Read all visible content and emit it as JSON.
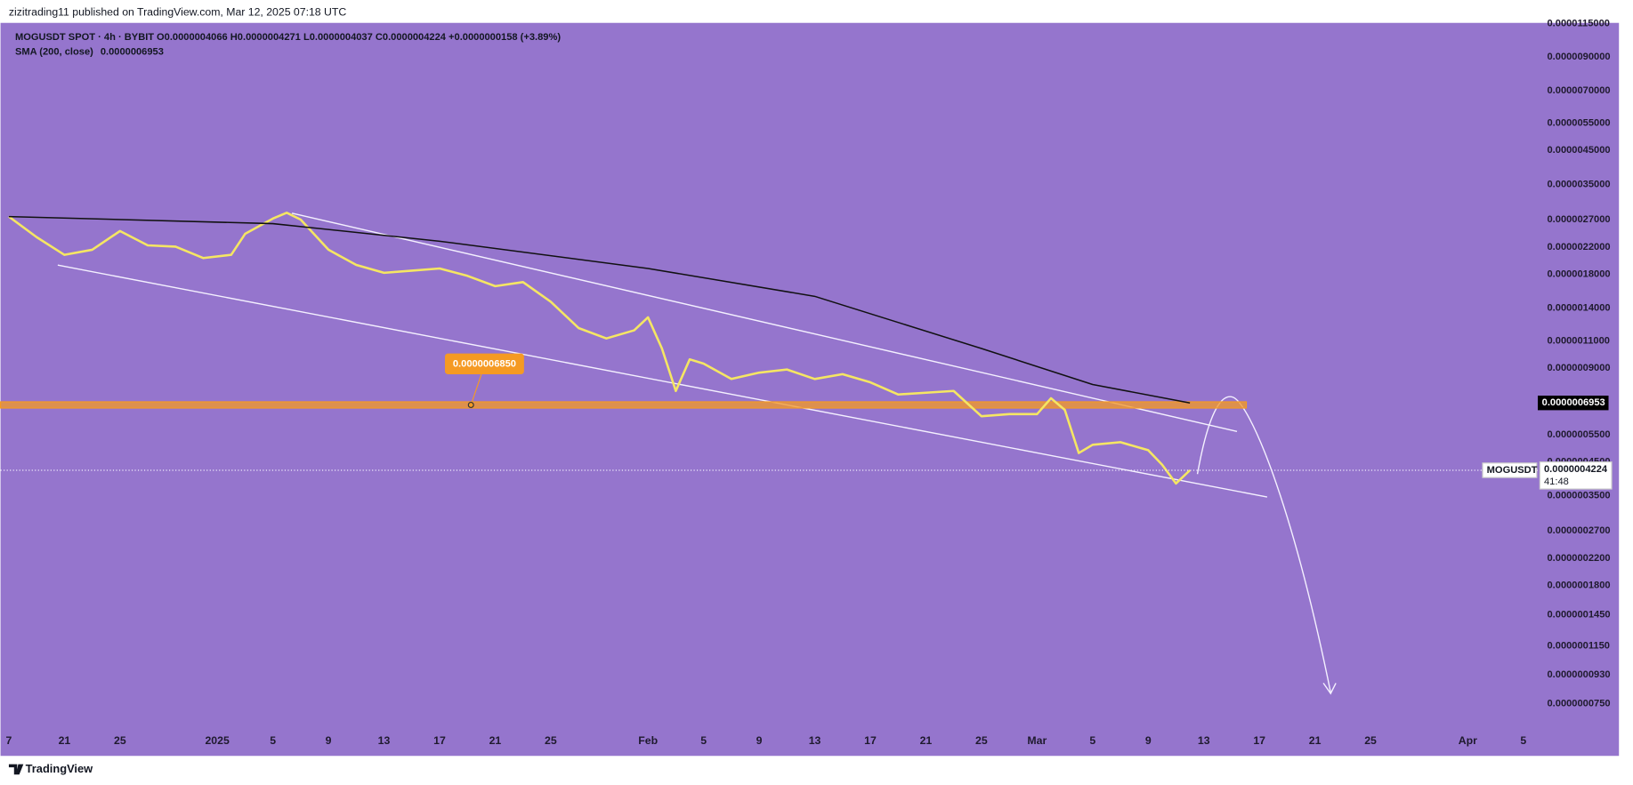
{
  "header": {
    "publisher": "zizitrading11 published on TradingView.com, Mar 12, 2025 07:18 UTC"
  },
  "legend": {
    "symbol": "MOGUSDT SPOT · 4h · BYBIT",
    "ohlc": "O0.0000004066 H0.0000004271 L0.0000004037 C0.0000004224 +0.0000000158 (+3.89%)"
  },
  "footer": {
    "brand": "TradingView"
  },
  "chart_data": {
    "type": "line",
    "log_scale": true,
    "xlim": [
      "2024-12-16T09:36",
      "2025-04-06T06:15"
    ],
    "xticks": [
      {
        "value": "2024-12-17",
        "label": "7"
      },
      {
        "value": "2024-12-21",
        "label": "21"
      },
      {
        "value": "2024-12-25",
        "label": "25"
      },
      {
        "value": "2025-01-01",
        "label": "2025"
      },
      {
        "value": "2025-01-05",
        "label": "5"
      },
      {
        "value": "2025-01-09",
        "label": "9"
      },
      {
        "value": "2025-01-13",
        "label": "13"
      },
      {
        "value": "2025-01-17",
        "label": "17"
      },
      {
        "value": "2025-01-21",
        "label": "21"
      },
      {
        "value": "2025-01-25",
        "label": "25"
      },
      {
        "value": "2025-02-01",
        "label": "Feb"
      },
      {
        "value": "2025-02-05",
        "label": "5"
      },
      {
        "value": "2025-02-09",
        "label": "9"
      },
      {
        "value": "2025-02-13",
        "label": "13"
      },
      {
        "value": "2025-02-17",
        "label": "17"
      },
      {
        "value": "2025-02-21",
        "label": "21"
      },
      {
        "value": "2025-02-25",
        "label": "25"
      },
      {
        "value": "2025-03-01",
        "label": "Mar"
      },
      {
        "value": "2025-03-05",
        "label": "5"
      },
      {
        "value": "2025-03-09",
        "label": "9"
      },
      {
        "value": "2025-03-13",
        "label": "13"
      },
      {
        "value": "2025-03-17",
        "label": "17"
      },
      {
        "value": "2025-03-21",
        "label": "21"
      },
      {
        "value": "2025-03-25",
        "label": "25"
      },
      {
        "value": "2025-04-01",
        "label": "Apr"
      },
      {
        "value": "2025-04-05",
        "label": "5"
      }
    ],
    "ylim": [
      6.43e-08,
      1.157e-05
    ],
    "yticks": [
      {
        "value": 1.15e-05,
        "label": "0.0000115000"
      },
      {
        "value": 9e-06,
        "label": "0.0000090000"
      },
      {
        "value": 7e-06,
        "label": "0.0000070000"
      },
      {
        "value": 5.5e-06,
        "label": "0.0000055000"
      },
      {
        "value": 4.5e-06,
        "label": "0.0000045000"
      },
      {
        "value": 3.5e-06,
        "label": "0.0000035000"
      },
      {
        "value": 2.7e-06,
        "label": "0.0000027000"
      },
      {
        "value": 2.2e-06,
        "label": "0.0000022000"
      },
      {
        "value": 1.8e-06,
        "label": "0.0000018000"
      },
      {
        "value": 1.4e-06,
        "label": "0.0000014000"
      },
      {
        "value": 1.1e-06,
        "label": "0.0000011000"
      },
      {
        "value": 9e-07,
        "label": "0.0000009000"
      },
      {
        "value": 5.5e-07,
        "label": "0.0000005500"
      },
      {
        "value": 4.5e-07,
        "label": "0.0000004500"
      },
      {
        "value": 3.5e-07,
        "label": "0.0000003500"
      },
      {
        "value": 2.7e-07,
        "label": "0.0000002700"
      },
      {
        "value": 2.2e-07,
        "label": "0.0000002200"
      },
      {
        "value": 1.8e-07,
        "label": "0.0000001800"
      },
      {
        "value": 1.45e-07,
        "label": "0.0000001450"
      },
      {
        "value": 1.15e-07,
        "label": "0.0000001150"
      },
      {
        "value": 9.3e-08,
        "label": "0.0000000930"
      },
      {
        "value": 7.5e-08,
        "label": "0.0000000750"
      }
    ],
    "series": [
      {
        "name": "MOGUSDT",
        "color": "#f5e663",
        "x": [
          "2024-12-17",
          "2024-12-19",
          "2024-12-21",
          "2024-12-23",
          "2024-12-25",
          "2024-12-27",
          "2024-12-29",
          "2024-12-31",
          "2025-01-02",
          "2025-01-03",
          "2025-01-05",
          "2025-01-06",
          "2025-01-07",
          "2025-01-09",
          "2025-01-11",
          "2025-01-13",
          "2025-01-15",
          "2025-01-17",
          "2025-01-19",
          "2025-01-21",
          "2025-01-23",
          "2025-01-25",
          "2025-01-27",
          "2025-01-29",
          "2025-01-31",
          "2025-02-01",
          "2025-02-02",
          "2025-02-03",
          "2025-02-04",
          "2025-02-05",
          "2025-02-07",
          "2025-02-09",
          "2025-02-11",
          "2025-02-13",
          "2025-02-15",
          "2025-02-17",
          "2025-02-19",
          "2025-02-21",
          "2025-02-23",
          "2025-02-25",
          "2025-02-27",
          "2025-03-01",
          "2025-03-02",
          "2025-03-03",
          "2025-03-04",
          "2025-03-05",
          "2025-03-07",
          "2025-03-09",
          "2025-03-10",
          "2025-03-11",
          "2025-03-12"
        ],
        "values": [
          2.76e-06,
          2.37e-06,
          2.08e-06,
          2.16e-06,
          2.48e-06,
          2.23e-06,
          2.21e-06,
          2.03e-06,
          2.08e-06,
          2.43e-06,
          2.72e-06,
          2.84e-06,
          2.7e-06,
          2.16e-06,
          1.93e-06,
          1.82e-06,
          1.85e-06,
          1.88e-06,
          1.78e-06,
          1.65e-06,
          1.7e-06,
          1.47e-06,
          1.21e-06,
          1.12e-06,
          1.19e-06,
          1.31e-06,
          1.04e-06,
          7.6e-07,
          9.6e-07,
          9.3e-07,
          8.3e-07,
          8.7e-07,
          8.9e-07,
          8.3e-07,
          8.6e-07,
          8.1e-07,
          7.4e-07,
          7.5e-07,
          7.6e-07,
          6.3e-07,
          6.4e-07,
          6.4e-07,
          7.2e-07,
          6.6e-07,
          4.8e-07,
          5.1e-07,
          5.2e-07,
          4.9e-07,
          4.4e-07,
          3.83e-07,
          4.224e-07
        ]
      },
      {
        "name": "SMA (200, close)",
        "color": "#111111",
        "x": [
          "2024-12-17",
          "2025-01-05",
          "2025-01-17",
          "2025-02-01",
          "2025-02-13",
          "2025-02-25",
          "2025-03-05",
          "2025-03-12"
        ],
        "values": [
          2.76e-06,
          2.62e-06,
          2.3e-06,
          1.88e-06,
          1.53e-06,
          1.04e-06,
          7.97e-07,
          6.953e-07
        ]
      }
    ],
    "sma_last": {
      "value": 6.953e-07,
      "label": "0.0000006953"
    },
    "last_price": {
      "value": 4.224e-07,
      "label": "0.0000004224"
    },
    "countdown": "41:48",
    "level": {
      "value": 6.85e-07,
      "label": "0.0000006850",
      "color": "#f59a23"
    }
  }
}
